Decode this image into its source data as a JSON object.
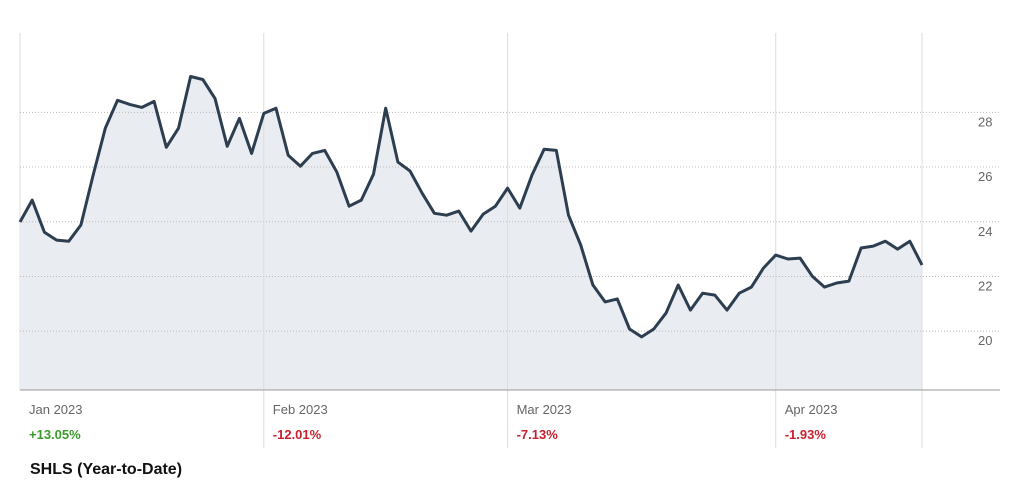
{
  "chart_data": {
    "type": "line",
    "title": "SHLS (Year-to-Date)",
    "categories": [
      "Jan 2023",
      null,
      null,
      null,
      null,
      null,
      null,
      null,
      null,
      null,
      null,
      null,
      null,
      null,
      null,
      null,
      null,
      null,
      null,
      null,
      "Feb 2023",
      null,
      null,
      null,
      null,
      null,
      null,
      null,
      null,
      null,
      null,
      null,
      null,
      null,
      null,
      null,
      null,
      null,
      null,
      null,
      "Mar 2023",
      null,
      null,
      null,
      null,
      null,
      null,
      null,
      null,
      null,
      null,
      null,
      null,
      null,
      null,
      null,
      null,
      null,
      null,
      null,
      null,
      null,
      "Apr 2023",
      null,
      null,
      null,
      null,
      null,
      null,
      null,
      null,
      null,
      null,
      null,
      null
    ],
    "values": [
      23.99,
      24.79,
      23.62,
      23.33,
      23.29,
      23.88,
      25.7,
      27.42,
      28.44,
      28.29,
      28.18,
      28.4,
      26.72,
      27.42,
      29.31,
      29.2,
      28.51,
      26.76,
      27.78,
      26.5,
      27.96,
      28.15,
      26.43,
      26.03,
      26.5,
      26.61,
      25.81,
      24.57,
      24.79,
      25.74,
      28.15,
      26.18,
      25.85,
      25.04,
      24.31,
      24.24,
      24.39,
      23.66,
      24.28,
      24.57,
      25.23,
      24.5,
      25.7,
      26.65,
      26.61,
      24.24,
      23.15,
      21.69,
      21.07,
      21.18,
      20.08,
      19.79,
      20.08,
      20.66,
      21.69,
      20.77,
      21.39,
      21.32,
      20.77,
      21.39,
      21.61,
      22.31,
      22.78,
      22.64,
      22.67,
      22.01,
      21.61,
      21.76,
      21.83,
      23.04,
      23.11,
      23.29,
      23.0,
      23.29,
      22.42
    ],
    "color": "#2c3e50",
    "fill_color": "#e9edf1",
    "ylim": [
      17.85,
      30.9
    ],
    "yticks": [
      20,
      22,
      24,
      26,
      28
    ],
    "grid": true,
    "period_changes": [
      {
        "value": 13.05,
        "label": "+13.05%",
        "color": "#3a9a2a"
      },
      {
        "value": -12.01,
        "label": "-12.01%",
        "color": "#c8202e"
      },
      {
        "value": -7.13,
        "label": "-7.13%",
        "color": "#c8202e"
      },
      {
        "value": -1.93,
        "label": "-1.93%",
        "color": "#c8202e"
      }
    ]
  }
}
